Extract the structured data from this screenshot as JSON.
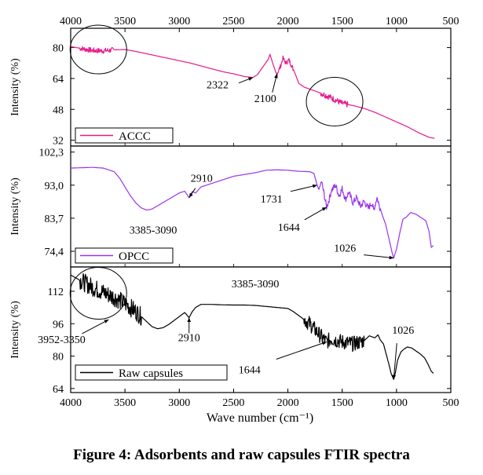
{
  "caption": "Figure 4: Adsorbents and raw capsules FTIR spectra",
  "chart_data": {
    "type": "line",
    "x_axis": {
      "label": "Wave number (cm⁻¹)",
      "range": [
        4000,
        500
      ],
      "ticks": [
        4000,
        3500,
        3000,
        2500,
        2000,
        1500,
        1000,
        500
      ]
    },
    "panels": [
      {
        "name": "ACCC",
        "ylabel": "Intensity (%)",
        "ylim": [
          29,
          90
        ],
        "yticks": [
          "80",
          "64",
          "48",
          "32"
        ],
        "ytick_values": [
          80,
          64,
          48,
          32
        ],
        "color": "#e6198c",
        "legend": "ACCC",
        "noise": [
          [
            3920,
            3600,
            1.4
          ],
          [
            2100,
            1950,
            1.2
          ],
          [
            1700,
            1450,
            1.6
          ]
        ],
        "points": [
          [
            4000,
            80.5
          ],
          [
            3900,
            79.5
          ],
          [
            3800,
            78.5
          ],
          [
            3700,
            78.3
          ],
          [
            3600,
            78.8
          ],
          [
            3500,
            79
          ],
          [
            3400,
            78
          ],
          [
            3300,
            76.8
          ],
          [
            3200,
            75.6
          ],
          [
            3100,
            74.4
          ],
          [
            3000,
            73.2
          ],
          [
            2900,
            72
          ],
          [
            2800,
            70.5
          ],
          [
            2700,
            69
          ],
          [
            2600,
            67.5
          ],
          [
            2500,
            66.4
          ],
          [
            2400,
            65
          ],
          [
            2322,
            64.5
          ],
          [
            2280,
            66
          ],
          [
            2230,
            70
          ],
          [
            2180,
            74
          ],
          [
            2165,
            76.5
          ],
          [
            2140,
            72
          ],
          [
            2110,
            67
          ],
          [
            2100,
            66.5
          ],
          [
            2070,
            70
          ],
          [
            2045,
            74.5
          ],
          [
            2020,
            72
          ],
          [
            1990,
            73.5
          ],
          [
            1960,
            70
          ],
          [
            1930,
            66
          ],
          [
            1900,
            61.5
          ],
          [
            1850,
            59.5
          ],
          [
            1800,
            58.5
          ],
          [
            1700,
            56.5
          ],
          [
            1600,
            54
          ],
          [
            1500,
            51
          ],
          [
            1400,
            50
          ],
          [
            1300,
            48.5
          ],
          [
            1200,
            46.5
          ],
          [
            1100,
            44
          ],
          [
            1000,
            41.5
          ],
          [
            900,
            39
          ],
          [
            800,
            36
          ],
          [
            700,
            33.5
          ],
          [
            650,
            33
          ]
        ],
        "annotations": [
          {
            "text": "2322",
            "x": 2322,
            "y": 64.5
          },
          {
            "text": "2100",
            "x": 2100,
            "y": 66.5
          }
        ]
      },
      {
        "name": "OPCC",
        "ylabel": "Intensity (%)",
        "ylim": [
          70,
          104
        ],
        "yticks": [
          "102,3",
          "93,0",
          "83,7",
          "74,4"
        ],
        "ytick_values": [
          102.3,
          93,
          83.7,
          74.4
        ],
        "color": "#9933ee",
        "legend": "OPCC",
        "noise": [
          [
            1700,
            1150,
            0.9
          ]
        ],
        "points": [
          [
            4000,
            97.8
          ],
          [
            3900,
            97.9
          ],
          [
            3800,
            98
          ],
          [
            3700,
            97.8
          ],
          [
            3600,
            96.8
          ],
          [
            3550,
            95
          ],
          [
            3500,
            92.5
          ],
          [
            3450,
            90
          ],
          [
            3400,
            88
          ],
          [
            3350,
            86.6
          ],
          [
            3300,
            86
          ],
          [
            3250,
            86.3
          ],
          [
            3200,
            87.2
          ],
          [
            3100,
            89
          ],
          [
            3000,
            90.8
          ],
          [
            2950,
            91.3
          ],
          [
            2910,
            89.5
          ],
          [
            2880,
            91.2
          ],
          [
            2850,
            90.8
          ],
          [
            2800,
            92.5
          ],
          [
            2700,
            93.5
          ],
          [
            2600,
            94.5
          ],
          [
            2500,
            95.5
          ],
          [
            2400,
            96
          ],
          [
            2300,
            96.5
          ],
          [
            2200,
            97.2
          ],
          [
            2100,
            97.3
          ],
          [
            2000,
            97.2
          ],
          [
            1900,
            96.9
          ],
          [
            1800,
            96.8
          ],
          [
            1760,
            96.3
          ],
          [
            1731,
            93
          ],
          [
            1715,
            91.8
          ],
          [
            1690,
            94
          ],
          [
            1670,
            91
          ],
          [
            1644,
            86.8
          ],
          [
            1620,
            89
          ],
          [
            1600,
            91.5
          ],
          [
            1560,
            93
          ],
          [
            1530,
            90
          ],
          [
            1500,
            92
          ],
          [
            1470,
            89
          ],
          [
            1440,
            91
          ],
          [
            1400,
            88
          ],
          [
            1370,
            89.5
          ],
          [
            1330,
            87
          ],
          [
            1300,
            88.5
          ],
          [
            1260,
            86.5
          ],
          [
            1230,
            88
          ],
          [
            1210,
            86
          ],
          [
            1180,
            89.5
          ],
          [
            1160,
            87.5
          ],
          [
            1130,
            84.5
          ],
          [
            1100,
            82
          ],
          [
            1070,
            78
          ],
          [
            1040,
            74
          ],
          [
            1026,
            72.5
          ],
          [
            1000,
            75
          ],
          [
            970,
            79.5
          ],
          [
            940,
            83.5
          ],
          [
            910,
            84
          ],
          [
            870,
            85.3
          ],
          [
            820,
            84.8
          ],
          [
            780,
            84
          ],
          [
            730,
            83
          ],
          [
            700,
            80
          ],
          [
            680,
            75.5
          ],
          [
            660,
            76
          ]
        ],
        "annotations": [
          {
            "text": "2910",
            "x": 2910,
            "y": 89.5
          },
          {
            "text": "1731",
            "x": 1731,
            "y": 93
          },
          {
            "text": "3385-3090",
            "x": 3240,
            "y": 86
          },
          {
            "text": "1644",
            "x": 1644,
            "y": 86.8
          },
          {
            "text": "1026",
            "x": 1026,
            "y": 72.5
          }
        ]
      },
      {
        "name": "Raw capsules",
        "ylabel": "Intensity (%)",
        "ylim": [
          62,
          124
        ],
        "yticks": [
          "112",
          "96",
          "80",
          "64"
        ],
        "ytick_values": [
          112,
          96,
          80,
          64
        ],
        "color": "#000000",
        "legend": "Raw capsules",
        "noise": [
          [
            3920,
            3350,
            4.5
          ],
          [
            1850,
            1300,
            3.8
          ]
        ],
        "points": [
          [
            4000,
            120
          ],
          [
            3900,
            117
          ],
          [
            3800,
            114
          ],
          [
            3700,
            111.5
          ],
          [
            3600,
            109
          ],
          [
            3500,
            106
          ],
          [
            3400,
            102
          ],
          [
            3300,
            97
          ],
          [
            3250,
            94.5
          ],
          [
            3200,
            93.5
          ],
          [
            3150,
            94
          ],
          [
            3100,
            95.5
          ],
          [
            3000,
            99.5
          ],
          [
            2950,
            101.5
          ],
          [
            2910,
            99
          ],
          [
            2880,
            102
          ],
          [
            2850,
            104
          ],
          [
            2800,
            105.5
          ],
          [
            2700,
            105.5
          ],
          [
            2600,
            105.3
          ],
          [
            2500,
            105.2
          ],
          [
            2400,
            105.2
          ],
          [
            2300,
            105
          ],
          [
            2200,
            104.5
          ],
          [
            2100,
            104
          ],
          [
            2000,
            103.5
          ],
          [
            1950,
            102
          ],
          [
            1900,
            100
          ],
          [
            1850,
            98
          ],
          [
            1800,
            96
          ],
          [
            1750,
            93
          ],
          [
            1700,
            90
          ],
          [
            1644,
            87
          ],
          [
            1600,
            88.5
          ],
          [
            1500,
            87
          ],
          [
            1400,
            86
          ],
          [
            1300,
            87.5
          ],
          [
            1250,
            90
          ],
          [
            1200,
            89
          ],
          [
            1170,
            90.5
          ],
          [
            1150,
            88
          ],
          [
            1120,
            86
          ],
          [
            1100,
            82
          ],
          [
            1070,
            76
          ],
          [
            1050,
            71.5
          ],
          [
            1026,
            68.5
          ],
          [
            1010,
            72
          ],
          [
            990,
            78
          ],
          [
            960,
            82
          ],
          [
            930,
            83.5
          ],
          [
            900,
            84.5
          ],
          [
            860,
            84
          ],
          [
            820,
            82.5
          ],
          [
            780,
            81
          ],
          [
            740,
            79
          ],
          [
            710,
            76
          ],
          [
            680,
            72.5
          ],
          [
            660,
            71.5
          ]
        ],
        "annotations": [
          {
            "text": "3385-3090",
            "x": 3385,
            "y": 105
          },
          {
            "text": "3952-3350",
            "x": 3650,
            "y": 98
          },
          {
            "text": "2910",
            "x": 2910,
            "y": 99
          },
          {
            "text": "1026",
            "x": 1026,
            "y": 68.5
          },
          {
            "text": "1644",
            "x": 1644,
            "y": 87
          }
        ]
      }
    ],
    "highlight_circles": [
      {
        "panel": "ACCC",
        "x": 3745,
        "y": 79
      },
      {
        "panel": "ACCC",
        "x": 1570,
        "y": 52
      },
      {
        "panel": "Raw capsules",
        "x": 3745,
        "y": 111
      }
    ]
  }
}
